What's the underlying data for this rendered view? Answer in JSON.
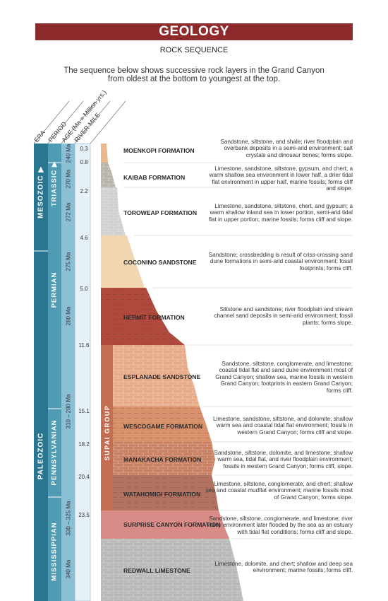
{
  "header": {
    "title": "GEOLOGY",
    "subtitle": "ROCK SEQUENCE",
    "intro": "The sequence below shows successive rock layers in the Grand Canyon from oldest at the bottom to youngest at the top."
  },
  "columns": {
    "era": "ERA",
    "period": "PERIOD",
    "age": "AGE (Ma = Million yrs.)",
    "river_mile": "RIVER MILE"
  },
  "eras": [
    {
      "label": "MESOZOIC",
      "has_arrow": true
    },
    {
      "label": "PALEOZOIC"
    }
  ],
  "periods": [
    {
      "label": "TRIASSIC",
      "has_arrow": true
    },
    {
      "label": "PERMIAN"
    },
    {
      "label": "PENNSYLVANIAN"
    },
    {
      "label": "MISSISSIPPIAN"
    }
  ],
  "ages": [
    {
      "label": "240 Ma"
    },
    {
      "label": "270 Ma"
    },
    {
      "label": "272 Ma"
    },
    {
      "label": "275 Ma"
    },
    {
      "label": "280 Ma"
    },
    {
      "label": "310 – 280 Ma"
    },
    {
      "label": "330 – 325 Ma"
    },
    {
      "label": "340 Ma"
    }
  ],
  "river_miles": [
    "0.3",
    "0.8",
    "2.2",
    "4.6",
    "5.0",
    "11.6",
    "15.1",
    "18.2",
    "20.4",
    "23.5"
  ],
  "group_label": "SUPAI GROUP",
  "formations": [
    {
      "name": "MOENKOPI FORMATION",
      "description": "Sandstone, siltstone, and shale; river floodplain and overbank deposits in a semi-arid environment; salt crystals and dinosaur bones; forms slope.",
      "color": "#e9b98d"
    },
    {
      "name": "KAIBAB FORMATION",
      "description": "Limestone, sandstone, siltstone, gypsum, and chert; a warm shallow sea environment in lower half, a drier tidal flat environment in upper half, marine fossils; forms cliff and slope.",
      "color": "#b9b4a9"
    },
    {
      "name": "TOROWEAP FORMATION",
      "description": "Limestone, sandstone, siltstone, chert, and gypsum; a warm shallow inland sea in lower portion, semi-arid tidal flat in upper portion; marine fossils; forms cliff and slope.",
      "color": "#d0d0d0"
    },
    {
      "name": "COCONINO SANDSTONE",
      "description": "Sandstone; crossbedding is result of criss-crossing sand dune formations in semi-arid coastal environment; fossil footprints; forms cliff.",
      "color": "#f1d6b2"
    },
    {
      "name": "HERMIT FORMATION",
      "description": "Siltstone and sandstone; river floodplain and stream channel sand deposits in semi-arid environment; fossil plants; forms slope.",
      "color": "#b04a3e"
    },
    {
      "name": "ESPLANADE SANDSTONE",
      "description": "Sandstone, siltstone, conglomerate, and limestone; coastal tidal flat and sand dune environment most of Grand Canyon; shallow sea, marine fossils in western Grand Canyon; footprints in eastern Grand Canyon; forms cliff.",
      "color": "#e8a987"
    },
    {
      "name": "WESCOGAME FORMATION",
      "description": "Limestone, sandstone, siltstone, and dolomite; shallow warm sea and coastal tidal flat environment; fossils in western Grand Canyon; forms cliff and slope.",
      "color": "#d9906c"
    },
    {
      "name": "MANAKACHA FORMATION",
      "description": "Sandstone, siltstone, dolomite, and limestone; shallow warm sea, tidal flat, and river floodplain environment; fossils in western Grand Canyon; forms cliff, slope.",
      "color": "#c87f62"
    },
    {
      "name": "WATAHOMIGI FORMATION",
      "description": "Limestone, siltstone, conglomerate, and chert; shallow sea and coastal mudflat environment; marine fossils most of Grand Canyon; forms slope.",
      "color": "#b37362"
    },
    {
      "name": "SURPRISE CANYON FORMATION",
      "description": "Sandstone, siltstone, conglomerate, and limestone; river valley environment later flooded by the sea as an estuary with tidal flat conditions; forms cliff and slope.",
      "color": "#d98b88"
    },
    {
      "name": "REDWALL LIMESTONE",
      "description": "Limestone, dolomite, and chert; shallow and deep sea environment; marine fossils; forms cliff.",
      "color": "#b8b8b8"
    }
  ]
}
